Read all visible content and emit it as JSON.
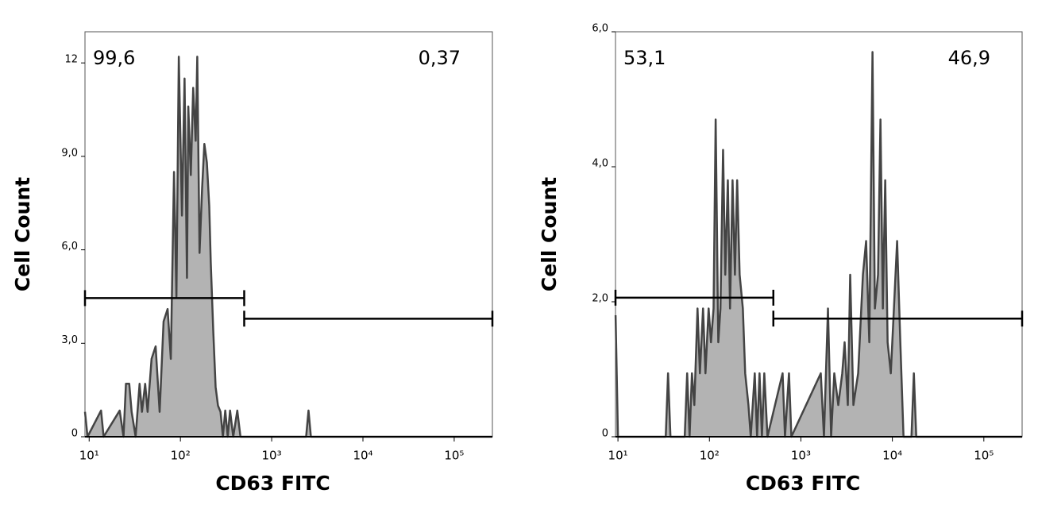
{
  "chart_data": [
    {
      "type": "area",
      "color": "#b3b3b3",
      "line_color": "#444444",
      "log_x": true,
      "xlabel": "CD63 FITC",
      "ylabel": "Cell Count",
      "xlim": [
        9,
        262143
      ],
      "ylim": [
        0,
        13
      ],
      "xticks": [
        {
          "value": 10,
          "label": "10¹"
        },
        {
          "value": 100,
          "label": "10²"
        },
        {
          "value": 1000,
          "label": "10³"
        },
        {
          "value": 10000,
          "label": "10⁴"
        },
        {
          "value": 100000,
          "label": "10⁵"
        }
      ],
      "yticks": [
        0,
        {
          "value": 3,
          "label": "3,0"
        },
        {
          "value": 6,
          "label": "6,0"
        },
        {
          "value": 9,
          "label": "9,0"
        },
        12
      ],
      "x": [
        9,
        9.6,
        13.5,
        14.4,
        21.6,
        23.8,
        25.3,
        27.5,
        29.2,
        32.3,
        35.7,
        37.9,
        41.1,
        43.7,
        48.3,
        53.5,
        59.2,
        65.4,
        72.4,
        78.5,
        85.1,
        90.4,
        96,
        104,
        111,
        118,
        122,
        130,
        138,
        147,
        153,
        162,
        173,
        183,
        195,
        207,
        215,
        229,
        243,
        258,
        275,
        292,
        310,
        330,
        350,
        379,
        420,
        455,
        2385,
        2533,
        2690,
        262143
      ],
      "values": [
        0.8,
        0,
        0.84,
        0,
        0.84,
        0,
        1.7,
        1.7,
        0.8,
        0,
        1.7,
        0.8,
        1.7,
        0.8,
        2.5,
        2.9,
        0.8,
        3.7,
        4.1,
        2.5,
        8.5,
        4.5,
        12.2,
        7.1,
        11.5,
        5.1,
        10.6,
        8.4,
        11.2,
        9.5,
        12.2,
        5.9,
        8,
        9.4,
        8.8,
        7.4,
        5.6,
        3.4,
        1.6,
        1,
        0.8,
        0,
        0.84,
        0,
        0.84,
        0,
        0.84,
        0,
        0,
        0.84,
        0,
        0
      ],
      "gates": [
        {
          "label": "99,6",
          "range": [
            9,
            500
          ],
          "level": 4.45
        },
        {
          "label": "0,37",
          "range": [
            500,
            262143
          ],
          "level": 3.79
        }
      ]
    },
    {
      "type": "area",
      "color": "#b3b3b3",
      "line_color": "#444444",
      "log_x": true,
      "xlabel": "CD63 FITC",
      "ylabel": "Cell Count",
      "xlim": [
        9.4,
        262143
      ],
      "ylim": [
        0,
        6
      ],
      "xticks": [
        {
          "value": 10,
          "label": "10¹"
        },
        {
          "value": 100,
          "label": "10²"
        },
        {
          "value": 1000,
          "label": "10³"
        },
        {
          "value": 10000,
          "label": "10⁴"
        },
        {
          "value": 100000,
          "label": "10⁵"
        }
      ],
      "yticks": [
        0,
        {
          "value": 2,
          "label": "2,0"
        },
        {
          "value": 4,
          "label": "4,0"
        },
        {
          "value": 6,
          "label": "6,0"
        }
      ],
      "x": [
        9.42,
        10,
        33.3,
        35.3,
        37.5,
        53.7,
        57.1,
        60.7,
        64.4,
        68.4,
        74.1,
        78.7,
        85.2,
        90.5,
        98,
        104,
        111,
        117,
        125,
        132,
        141,
        149,
        159,
        168,
        179,
        190,
        201,
        214,
        232,
        246,
        267,
        283,
        313,
        332,
        353,
        375,
        398,
        431,
        631,
        670,
        741,
        787,
        1650,
        1787,
        1977,
        2140,
        2318,
        2563,
        2832,
        3006,
        3258,
        3459,
        3750,
        4227,
        4766,
        5164,
        5597,
        6066,
        6440,
        6969,
        7413,
        7870,
        8356,
        8872,
        9616,
        10400,
        11270,
        12220,
        13240,
        16180,
        17180,
        18240,
        262143
      ],
      "values": [
        1.8,
        0,
        0,
        0.94,
        0,
        0,
        0.94,
        0,
        0.94,
        0.47,
        1.9,
        0.94,
        1.9,
        0.94,
        1.9,
        1.4,
        1.9,
        4.7,
        1.4,
        1.9,
        4.25,
        2.4,
        3.8,
        1.9,
        3.8,
        2.4,
        3.8,
        2.4,
        1.9,
        0.94,
        0.47,
        0,
        0.94,
        0,
        0.94,
        0,
        0.94,
        0,
        0.94,
        0,
        0.94,
        0,
        0.94,
        0,
        1.9,
        0,
        0.94,
        0.47,
        0.94,
        1.4,
        0.47,
        2.4,
        0.47,
        0.94,
        2.4,
        2.9,
        1.4,
        5.7,
        1.9,
        2.4,
        4.7,
        1.9,
        3.8,
        1.4,
        0.94,
        1.9,
        2.9,
        1.4,
        0,
        0,
        0.94,
        0,
        0
      ],
      "gates": [
        {
          "label": "53,1",
          "range": [
            9.4,
            500
          ],
          "level": 2.06
        },
        {
          "label": "46,9",
          "range": [
            500,
            262143
          ],
          "level": 1.75
        }
      ]
    }
  ]
}
